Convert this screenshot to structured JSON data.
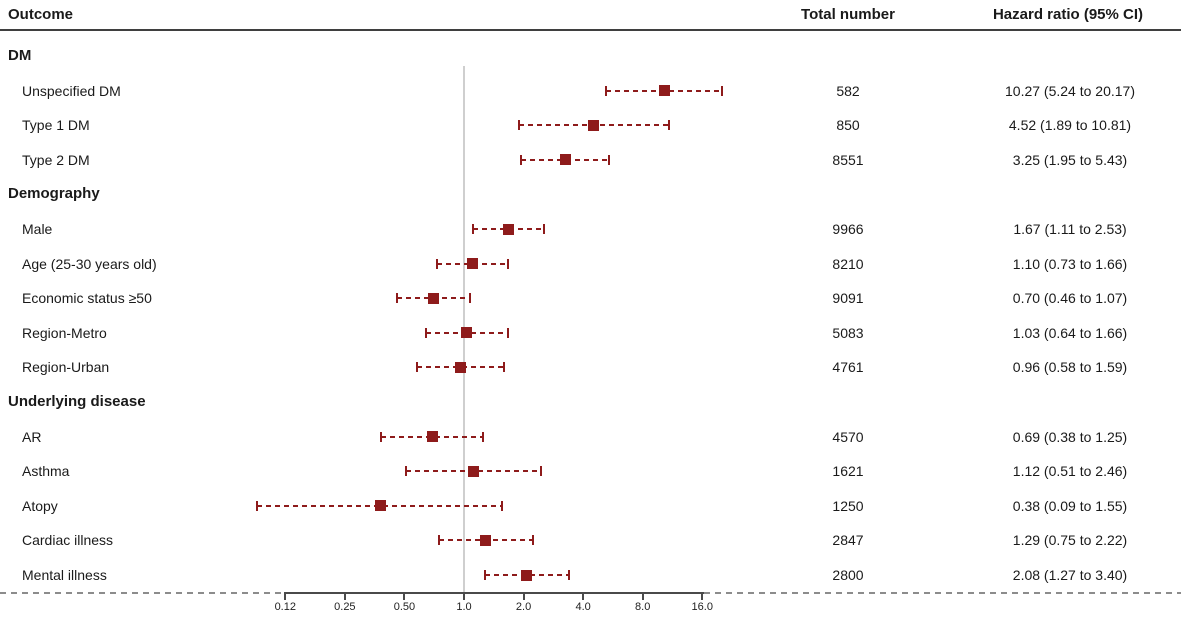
{
  "accent_color": "#8E1B1B",
  "columns": {
    "outcome": "Outcome",
    "total": "Total number",
    "hazard": "Hazard ratio (95% CI)"
  },
  "chart_data": {
    "type": "scatter",
    "variant": "forest_plot_hazard_ratios",
    "title": "",
    "xlabel": "",
    "ylabel": "",
    "xscale": "log2",
    "xlim": [
      0.07,
      30
    ],
    "grid": "off",
    "legend": "none",
    "marker_style": "filled-square-with-dashed-95ci-whiskers",
    "marker_color": "#8E1B1B",
    "reference_line": 1.0,
    "xticks": {
      "labels": [
        "0.12",
        "0.25",
        "0.50",
        "1.0",
        "2.0",
        "4.0",
        "8.0",
        "16.0"
      ],
      "values": [
        0.125,
        0.25,
        0.5,
        1,
        2,
        4,
        8,
        16
      ]
    },
    "columns": [
      "Outcome",
      "Total number",
      "Hazard ratio (95% CI)"
    ],
    "groups": [
      {
        "name": "DM",
        "items": [
          {
            "label": "Unspecified DM",
            "total": "582",
            "hr": 10.27,
            "ci_low": 5.24,
            "ci_high": 20.17,
            "display": "10.27 (5.24 to 20.17)"
          },
          {
            "label": "Type 1 DM",
            "total": "850",
            "hr": 4.52,
            "ci_low": 1.89,
            "ci_high": 10.81,
            "display": "4.52 (1.89 to 10.81)"
          },
          {
            "label": "Type 2 DM",
            "total": "8551",
            "hr": 3.25,
            "ci_low": 1.95,
            "ci_high": 5.43,
            "display": "3.25 (1.95 to 5.43)"
          }
        ]
      },
      {
        "name": "Demography",
        "items": [
          {
            "label": "Male",
            "total": "9966",
            "hr": 1.67,
            "ci_low": 1.11,
            "ci_high": 2.53,
            "display": "1.67 (1.11 to 2.53)"
          },
          {
            "label": "Age (25-30 years old)",
            "total": "8210",
            "hr": 1.1,
            "ci_low": 0.73,
            "ci_high": 1.66,
            "display": "1.10 (0.73 to 1.66)"
          },
          {
            "label": "Economic status ≥50",
            "total": "9091",
            "hr": 0.7,
            "ci_low": 0.46,
            "ci_high": 1.07,
            "display": "0.70 (0.46 to 1.07)"
          },
          {
            "label": "Region-Metro",
            "total": "5083",
            "hr": 1.03,
            "ci_low": 0.64,
            "ci_high": 1.66,
            "display": "1.03 (0.64 to 1.66)"
          },
          {
            "label": "Region-Urban",
            "total": "4761",
            "hr": 0.96,
            "ci_low": 0.58,
            "ci_high": 1.59,
            "display": "0.96 (0.58 to 1.59)"
          }
        ]
      },
      {
        "name": "Underlying disease",
        "items": [
          {
            "label": "AR",
            "total": "4570",
            "hr": 0.69,
            "ci_low": 0.38,
            "ci_high": 1.25,
            "display": "0.69 (0.38 to 1.25)"
          },
          {
            "label": "Asthma",
            "total": "1621",
            "hr": 1.12,
            "ci_low": 0.51,
            "ci_high": 2.46,
            "display": "1.12 (0.51 to 2.46)"
          },
          {
            "label": "Atopy",
            "total": "1250",
            "hr": 0.38,
            "ci_low": 0.09,
            "ci_high": 1.55,
            "display": "0.38 (0.09 to 1.55)"
          },
          {
            "label": "Cardiac illness",
            "total": "2847",
            "hr": 1.29,
            "ci_low": 0.75,
            "ci_high": 2.22,
            "display": "1.29 (0.75 to 2.22)"
          },
          {
            "label": "Mental illness",
            "total": "2800",
            "hr": 2.08,
            "ci_low": 1.27,
            "ci_high": 3.4,
            "display": "2.08 (1.27 to 3.40)"
          }
        ]
      }
    ]
  }
}
